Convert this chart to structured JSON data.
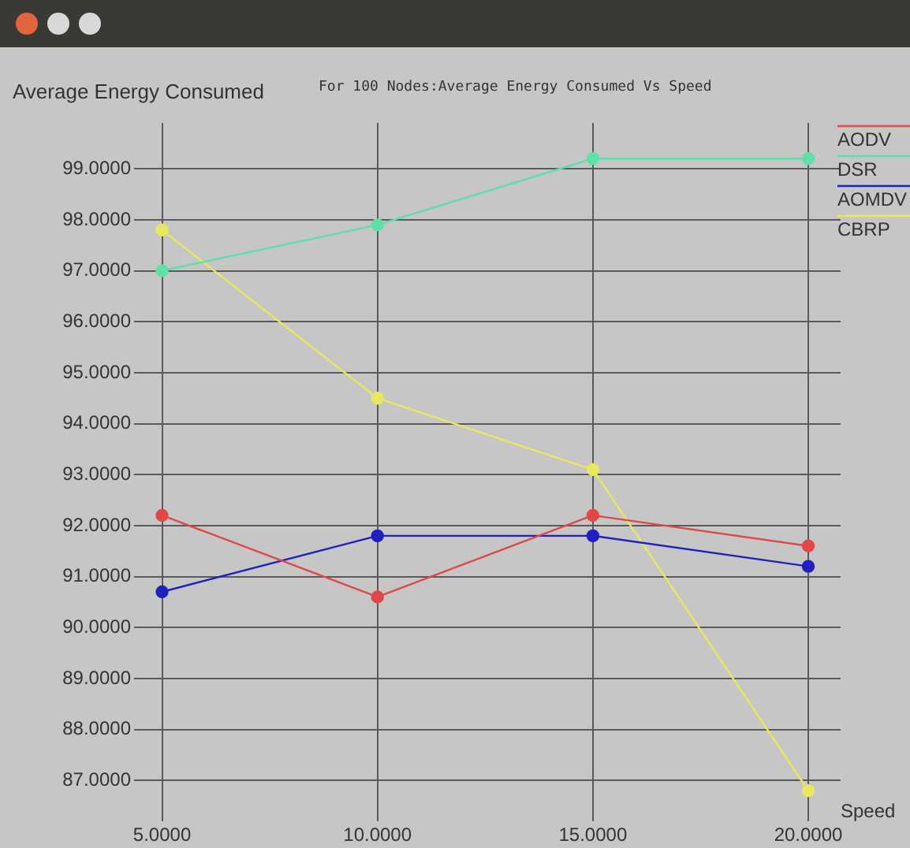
{
  "chart_data": {
    "type": "line",
    "title": "For 100 Nodes:Average Energy Consumed Vs Speed",
    "ylabel": "Average Energy Consumed",
    "xlabel": "Speed",
    "x": [
      5,
      10,
      15,
      20
    ],
    "series": [
      {
        "name": "AODV",
        "color": "#e04848",
        "values": [
          92.2,
          90.6,
          92.2,
          91.6
        ]
      },
      {
        "name": "DSR",
        "color": "#5ee0a8",
        "values": [
          97.0,
          97.9,
          99.2,
          99.2
        ]
      },
      {
        "name": "AOMDV",
        "color": "#2020c0",
        "values": [
          90.7,
          91.8,
          91.8,
          91.2
        ]
      },
      {
        "name": "CBRP",
        "color": "#e8e860",
        "values": [
          97.8,
          94.5,
          93.1,
          86.8
        ]
      }
    ],
    "xlim": [
      4.35,
      20.75
    ],
    "ylim": [
      86.2,
      99.9
    ],
    "xticks": [
      {
        "value": 5,
        "label": "5.0000"
      },
      {
        "value": 10,
        "label": "10.0000"
      },
      {
        "value": 15,
        "label": "15.0000"
      },
      {
        "value": 20,
        "label": "20.0000"
      }
    ],
    "yticks": [
      {
        "value": 87,
        "label": "87.0000"
      },
      {
        "value": 88,
        "label": "88.0000"
      },
      {
        "value": 89,
        "label": "89.0000"
      },
      {
        "value": 90,
        "label": "90.0000"
      },
      {
        "value": 91,
        "label": "91.0000"
      },
      {
        "value": 92,
        "label": "92.0000"
      },
      {
        "value": 93,
        "label": "93.0000"
      },
      {
        "value": 94,
        "label": "94.0000"
      },
      {
        "value": 95,
        "label": "95.0000"
      },
      {
        "value": 96,
        "label": "96.0000"
      },
      {
        "value": 97,
        "label": "97.0000"
      },
      {
        "value": 98,
        "label": "98.0000"
      },
      {
        "value": 99,
        "label": "99.0000"
      }
    ],
    "grid": true,
    "legend": "top right",
    "marker": "circle",
    "line_style": "solid"
  }
}
